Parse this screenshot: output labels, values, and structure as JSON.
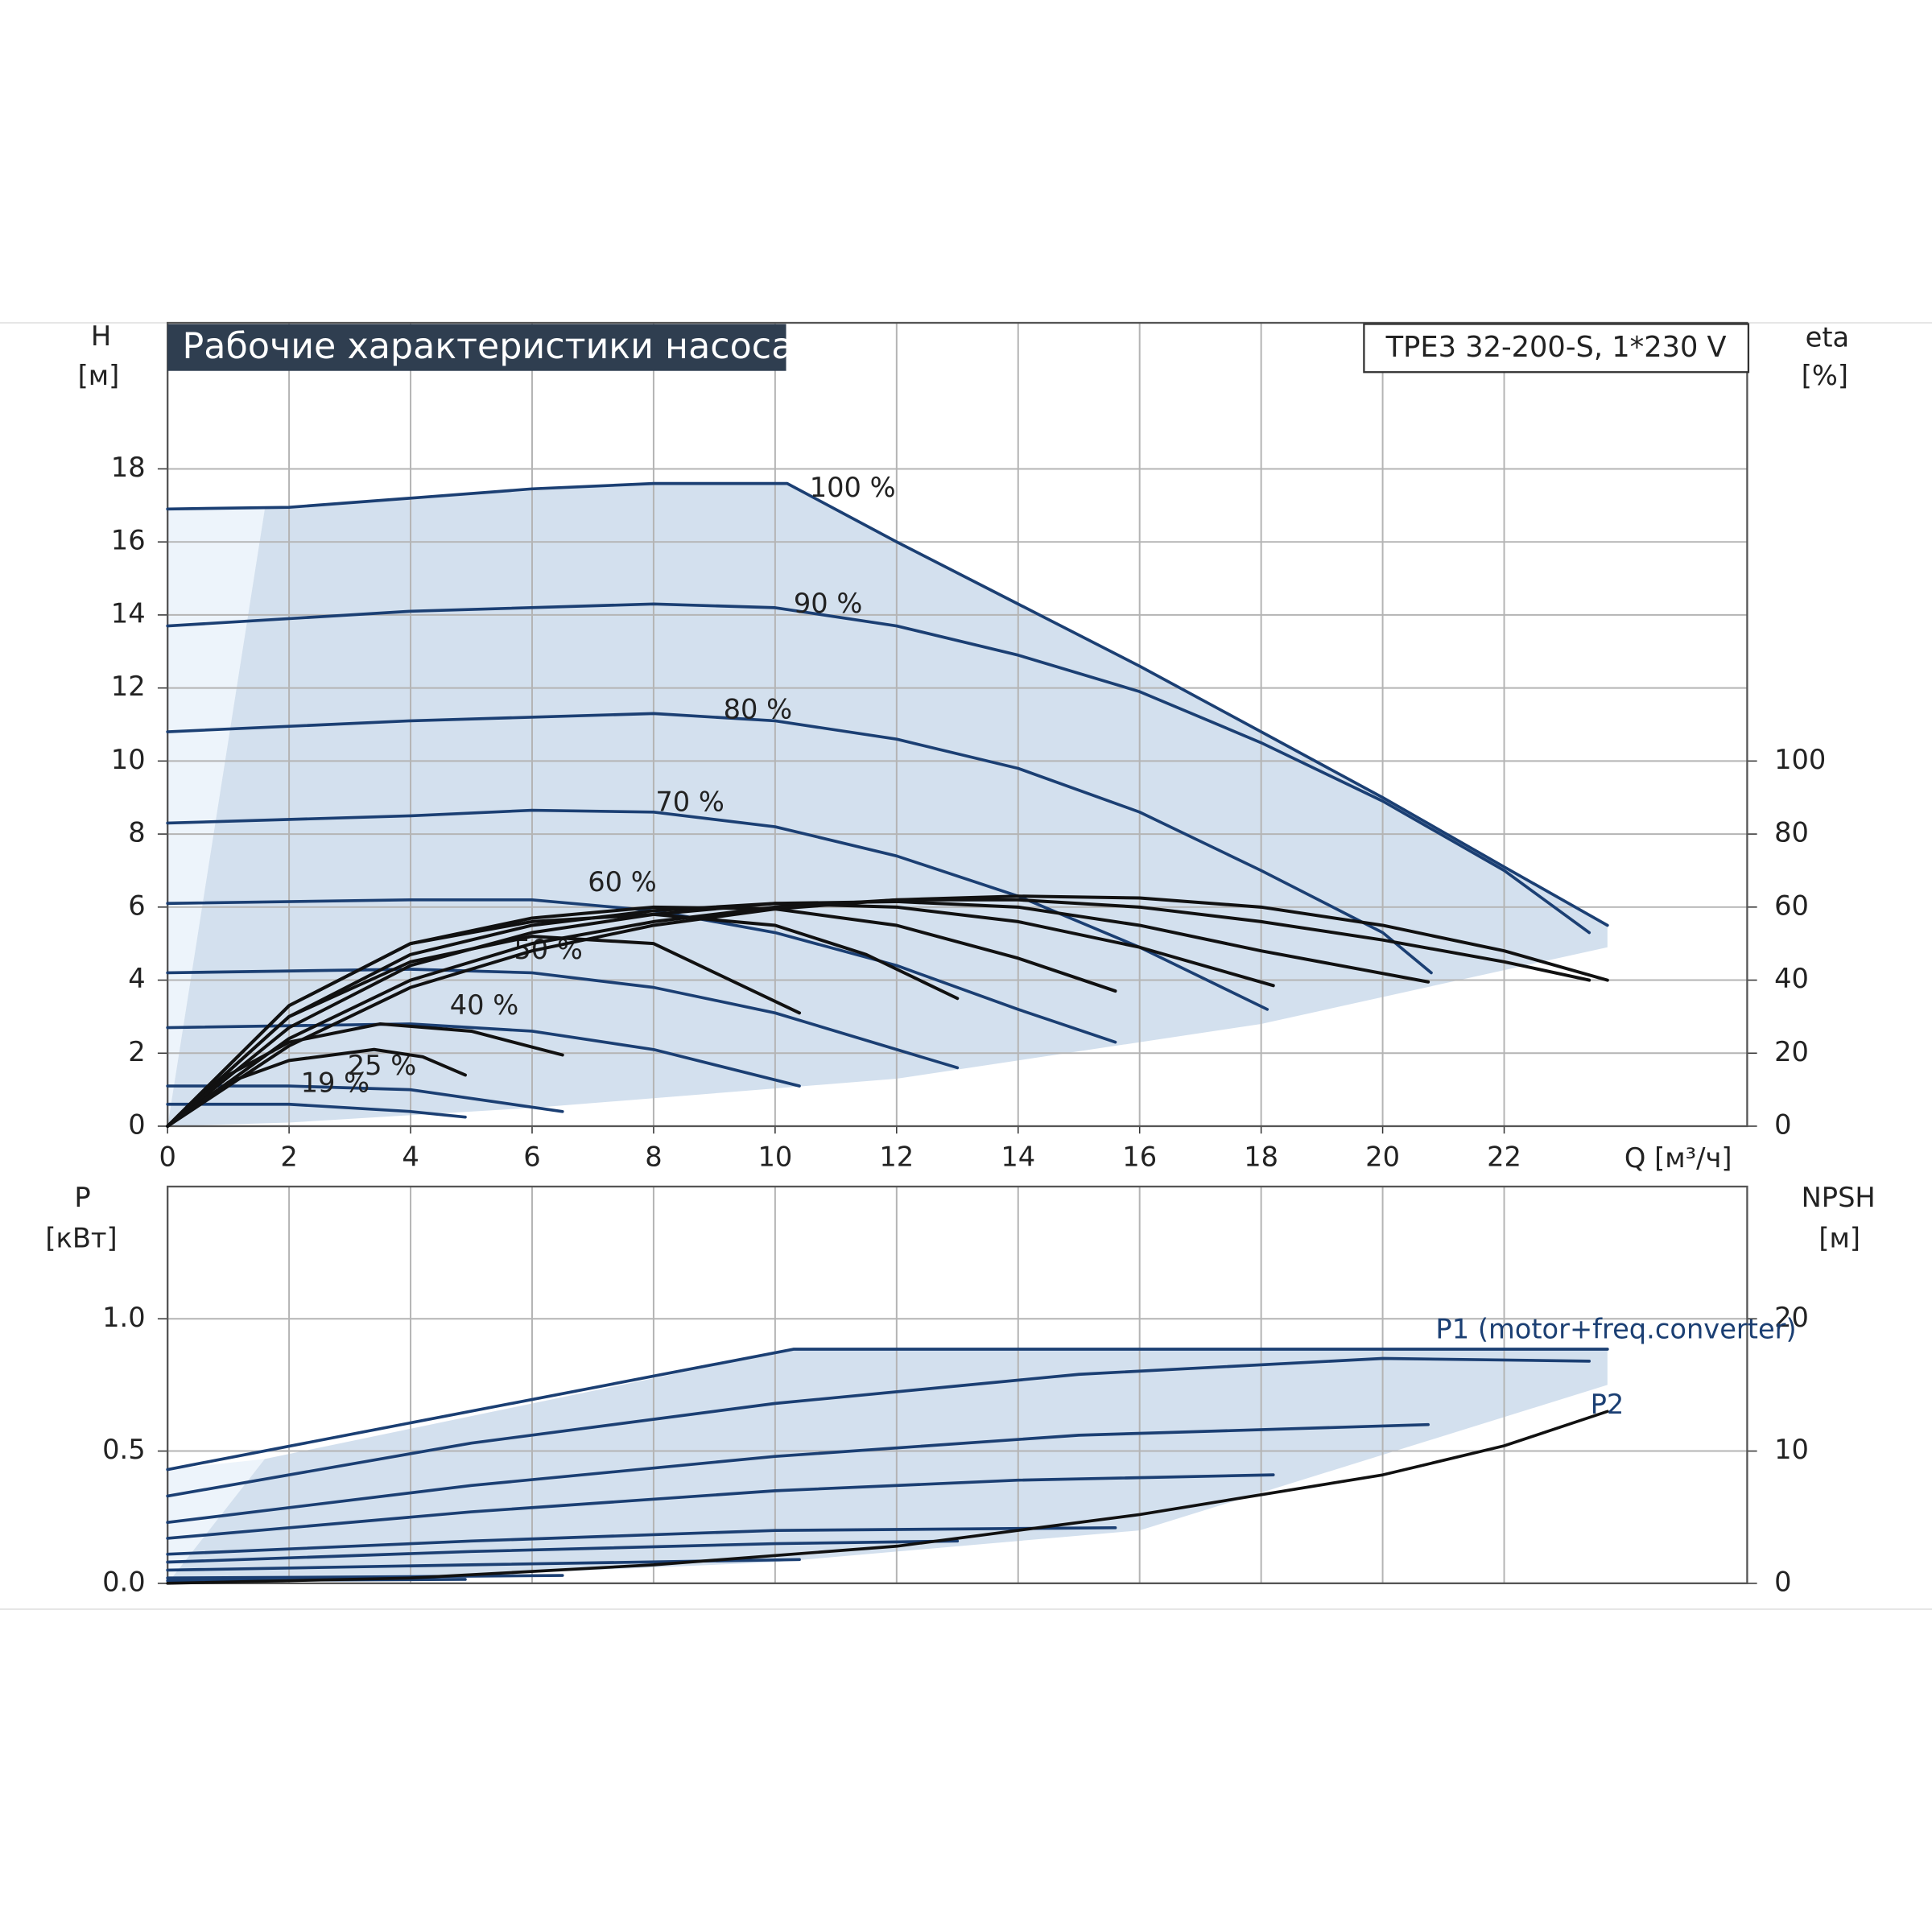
{
  "chart_data": [
    {
      "type": "line",
      "title": "Рабочие характеристики насоса",
      "subtitle": "TPE3 32-200-S, 1*230 V",
      "ylabel": "H",
      "yunit": "[м]",
      "y2label": "eta",
      "y2unit": "[%]",
      "xlabel": "Q [м³/ч]",
      "xlim": [
        0,
        26
      ],
      "xticks": [
        0,
        2,
        4,
        6,
        8,
        10,
        12,
        14,
        16,
        18,
        20,
        22
      ],
      "ylim": [
        0,
        22
      ],
      "yticks": [
        0,
        2,
        4,
        6,
        8,
        10,
        12,
        14,
        16,
        18
      ],
      "y2lim": [
        0,
        220
      ],
      "y2ticks": [
        0,
        20,
        40,
        60,
        80,
        100
      ],
      "grid": true,
      "envelope": {
        "color": "#d3e0ee",
        "x": [
          1.6,
          4,
          8,
          10.2,
          12,
          16,
          20,
          23.7,
          23.7,
          18,
          12,
          6,
          2,
          0
        ],
        "y": [
          16.9,
          17.2,
          17.6,
          17.6,
          16.0,
          12.6,
          9.0,
          5.5,
          4.9,
          2.8,
          1.3,
          0.5,
          0.1,
          0
        ]
      },
      "series": [
        {
          "name": "100 %",
          "color": "#1b3f73",
          "x": [
            0,
            2,
            4,
            6,
            8,
            10.2,
            12,
            14,
            16,
            18,
            20,
            22,
            23.7
          ],
          "values": [
            16.9,
            16.95,
            17.2,
            17.45,
            17.6,
            17.6,
            16.0,
            14.3,
            12.6,
            10.8,
            9.0,
            7.1,
            5.5
          ]
        },
        {
          "name": "90 %",
          "color": "#1b3f73",
          "x": [
            0,
            4,
            8,
            10,
            12,
            14,
            16,
            18,
            20,
            22,
            23.4
          ],
          "values": [
            13.7,
            14.1,
            14.3,
            14.2,
            13.7,
            12.9,
            11.9,
            10.5,
            8.9,
            7.0,
            5.3
          ]
        },
        {
          "name": "80 %",
          "color": "#1b3f73",
          "x": [
            0,
            4,
            8,
            10,
            12,
            14,
            16,
            18,
            20,
            20.8
          ],
          "values": [
            10.8,
            11.1,
            11.3,
            11.1,
            10.6,
            9.8,
            8.6,
            7.0,
            5.3,
            4.2
          ]
        },
        {
          "name": "70 %",
          "color": "#1b3f73",
          "x": [
            0,
            4,
            6,
            8,
            10,
            12,
            14,
            16,
            18.1
          ],
          "values": [
            8.3,
            8.5,
            8.65,
            8.6,
            8.2,
            7.4,
            6.3,
            4.9,
            3.2
          ]
        },
        {
          "name": "60 %",
          "color": "#1b3f73",
          "x": [
            0,
            4,
            6,
            8,
            10,
            12,
            14,
            15.6
          ],
          "values": [
            6.1,
            6.2,
            6.2,
            5.9,
            5.3,
            4.4,
            3.2,
            2.3
          ]
        },
        {
          "name": "50 %",
          "color": "#1b3f73",
          "x": [
            0,
            4,
            6,
            8,
            10,
            13
          ],
          "values": [
            4.2,
            4.3,
            4.2,
            3.8,
            3.1,
            1.6
          ]
        },
        {
          "name": "40 %",
          "color": "#1b3f73",
          "x": [
            0,
            4,
            6,
            8,
            10.4
          ],
          "values": [
            2.7,
            2.8,
            2.6,
            2.1,
            1.1
          ]
        },
        {
          "name": "25 %",
          "color": "#1b3f73",
          "x": [
            0,
            2,
            4,
            6.5
          ],
          "values": [
            1.1,
            1.1,
            1.0,
            0.4
          ]
        },
        {
          "name": "19 %",
          "color": "#1b3f73",
          "x": [
            0,
            2,
            4,
            4.9
          ],
          "values": [
            0.6,
            0.6,
            0.4,
            0.25
          ]
        },
        {
          "axis": "y2",
          "color": "#111111",
          "x": [
            0,
            2,
            4,
            6,
            8,
            10,
            12,
            14,
            16,
            18,
            20,
            22,
            23.7
          ],
          "values": [
            0,
            22,
            38,
            48,
            55,
            59.5,
            62,
            63,
            62.5,
            60,
            55,
            48,
            40
          ]
        },
        {
          "axis": "y2",
          "color": "#111111",
          "x": [
            0,
            2,
            4,
            6,
            8,
            10,
            12,
            14,
            16,
            18,
            20,
            22,
            23.4
          ],
          "values": [
            0,
            24,
            40,
            50,
            56,
            60,
            62,
            62,
            60,
            56,
            51,
            45,
            40
          ]
        },
        {
          "axis": "y2",
          "color": "#111111",
          "x": [
            0,
            2,
            4,
            6,
            8,
            10,
            12,
            14,
            16,
            18,
            20.75
          ],
          "values": [
            0,
            27,
            44,
            53,
            58,
            61,
            61.5,
            60,
            55,
            48,
            39.5
          ]
        },
        {
          "axis": "y2",
          "color": "#111111",
          "x": [
            0,
            2,
            4,
            6,
            8,
            10,
            12,
            14,
            16,
            18.2
          ],
          "values": [
            0,
            30,
            47,
            55,
            59,
            61,
            60,
            56,
            49,
            38.5
          ]
        },
        {
          "axis": "y2",
          "color": "#111111",
          "x": [
            0,
            2,
            4,
            6,
            8,
            10,
            12,
            14,
            15.6
          ],
          "values": [
            0,
            33,
            50,
            57,
            60,
            59.5,
            55,
            46,
            37
          ]
        },
        {
          "axis": "y2",
          "color": "#111111",
          "x": [
            0,
            2,
            4,
            6,
            8,
            10,
            11.5,
            13
          ],
          "values": [
            0,
            33,
            50,
            56,
            58,
            55,
            47,
            35
          ]
        },
        {
          "axis": "y2",
          "color": "#111111",
          "x": [
            0,
            2,
            4,
            6,
            8,
            10.4
          ],
          "values": [
            0,
            30,
            45,
            52,
            50,
            31
          ]
        },
        {
          "axis": "y2",
          "color": "#111111",
          "x": [
            0,
            1,
            2,
            3.5,
            5,
            6.5
          ],
          "values": [
            0,
            14,
            23,
            28,
            26,
            19.5
          ]
        },
        {
          "axis": "y2",
          "color": "#111111",
          "x": [
            0,
            1,
            2,
            3.4,
            4.2,
            4.9
          ],
          "values": [
            0,
            12,
            18,
            21,
            19,
            14
          ]
        }
      ]
    },
    {
      "type": "line",
      "ylabel": "P",
      "yunit": "[кВт]",
      "y2label": "NPSH",
      "y2unit": "[м]",
      "xlim": [
        0,
        26
      ],
      "ylim": [
        0,
        1.5
      ],
      "yticks": [
        {
          "value": 0,
          "label": "0.0"
        },
        0.5,
        {
          "value": 1,
          "label": "1.0"
        }
      ],
      "y2lim": [
        0,
        30
      ],
      "y2ticks": [
        0,
        10,
        20
      ],
      "envelope": {
        "color": "#d3e0ee",
        "x": [
          1.6,
          10.3,
          23.7,
          23.7,
          16,
          10,
          4,
          0
        ],
        "y": [
          0.47,
          0.885,
          0.885,
          0.75,
          0.2,
          0.08,
          0.02,
          0
        ]
      },
      "series": [
        {
          "name": "P1 (motor+freq.converter)",
          "color": "#1b3f73",
          "x": [
            0,
            10.3,
            23.7
          ],
          "values": [
            0.43,
            0.885,
            0.885
          ]
        },
        {
          "color": "#1b3f73",
          "x": [
            0,
            5,
            10,
            15,
            20,
            23.4
          ],
          "values": [
            0.33,
            0.53,
            0.68,
            0.79,
            0.85,
            0.84
          ]
        },
        {
          "color": "#1b3f73",
          "x": [
            0,
            5,
            10,
            15,
            20.75
          ],
          "values": [
            0.23,
            0.37,
            0.48,
            0.56,
            0.6
          ]
        },
        {
          "color": "#1b3f73",
          "x": [
            0,
            5,
            10,
            14,
            18.2
          ],
          "values": [
            0.17,
            0.27,
            0.35,
            0.39,
            0.41
          ]
        },
        {
          "color": "#1b3f73",
          "x": [
            0,
            5,
            10,
            15.6
          ],
          "values": [
            0.11,
            0.16,
            0.2,
            0.21
          ]
        },
        {
          "color": "#1b3f73",
          "x": [
            0,
            5,
            10,
            13
          ],
          "values": [
            0.08,
            0.12,
            0.15,
            0.16
          ]
        },
        {
          "color": "#1b3f73",
          "x": [
            0,
            5,
            10.4
          ],
          "values": [
            0.05,
            0.07,
            0.09
          ]
        },
        {
          "color": "#1b3f73",
          "x": [
            0,
            4,
            6.5
          ],
          "values": [
            0.02,
            0.025,
            0.03
          ]
        },
        {
          "color": "#1b3f73",
          "x": [
            0,
            4.9
          ],
          "values": [
            0.01,
            0.015
          ]
        },
        {
          "name": "P2",
          "color": "#111111",
          "x": [
            0,
            4,
            8,
            12,
            16,
            20,
            22,
            23.7
          ],
          "values": [
            0,
            0.02,
            0.07,
            0.14,
            0.26,
            0.41,
            0.52,
            0.65
          ]
        }
      ]
    }
  ]
}
